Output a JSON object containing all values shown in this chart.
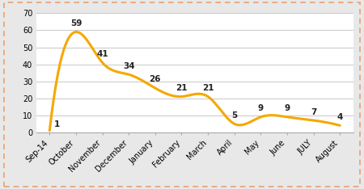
{
  "categories": [
    "Sep-14",
    "October",
    "November",
    "December",
    "January",
    "February",
    "March",
    "April",
    "May",
    "June",
    "JULY",
    "August"
  ],
  "values": [
    1,
    59,
    41,
    34,
    26,
    21,
    21,
    5,
    9,
    9,
    7,
    4
  ],
  "line_color": "#F5A800",
  "line_width": 2.2,
  "ylim": [
    0,
    70
  ],
  "yticks": [
    0,
    10,
    20,
    30,
    40,
    50,
    60,
    70
  ],
  "grid_color": "#C8C8C8",
  "plot_bg": "#FFFFFF",
  "outer_bg": "#E8E8E8",
  "border_color": "#E8A070",
  "label_fontsize": 7,
  "annotation_fontsize": 7.5,
  "annotation_color": "#222222",
  "annotation_offsets": [
    3,
    3,
    3,
    3,
    3,
    3,
    3,
    3,
    3,
    3,
    3,
    3
  ]
}
